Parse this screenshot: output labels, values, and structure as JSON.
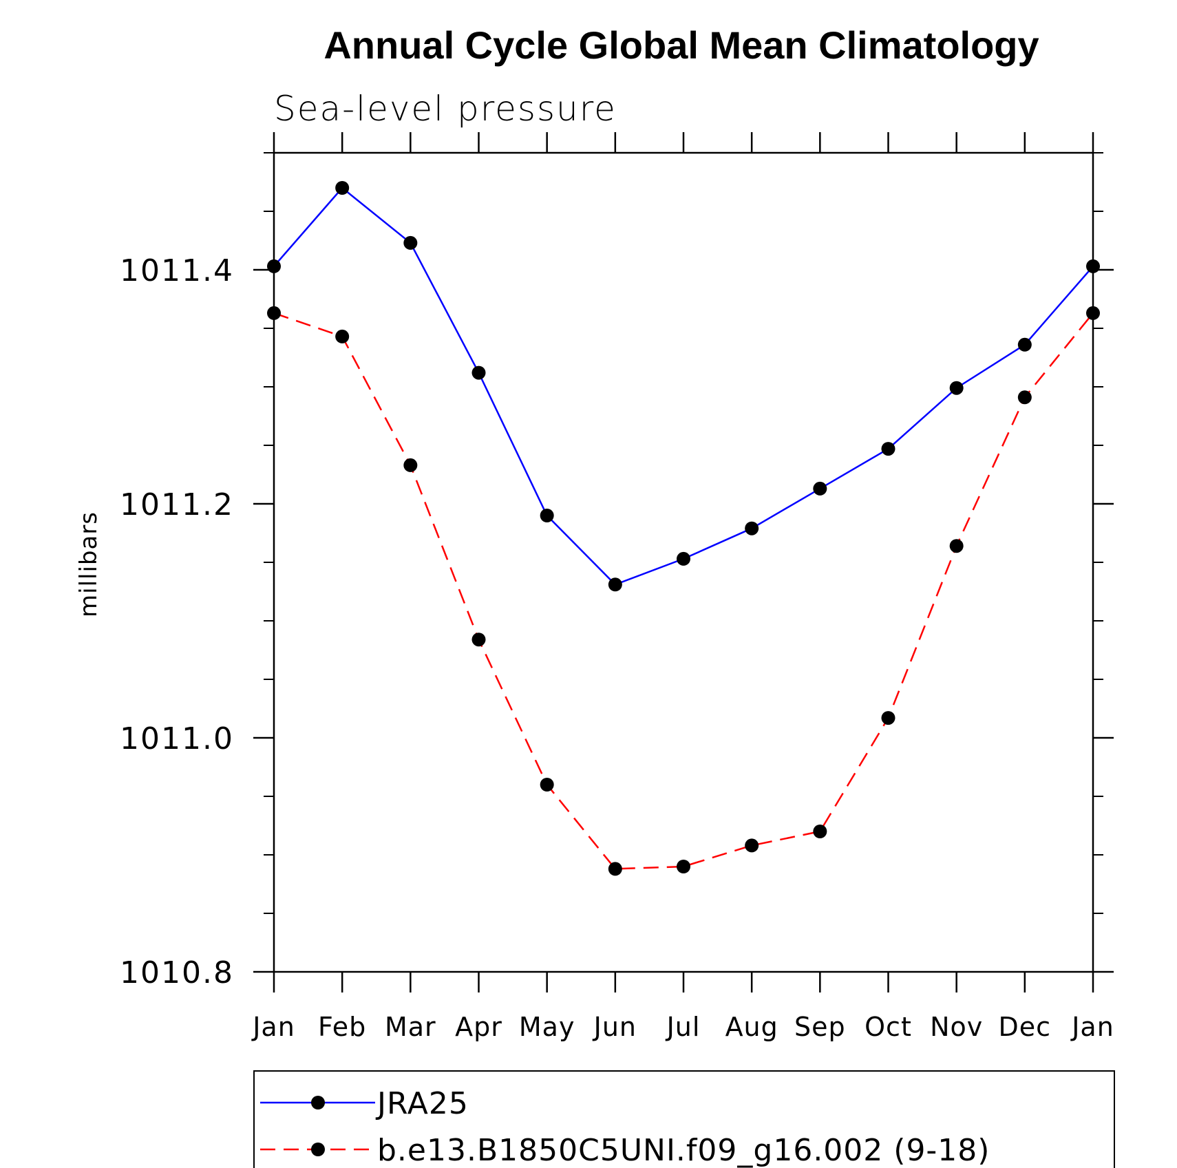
{
  "chart_data": {
    "type": "line",
    "title": "Annual Cycle Global Mean Climatology",
    "subtitle": "Sea-level pressure",
    "ylabel": "millibars",
    "xlabel": "",
    "categories": [
      "Jan",
      "Feb",
      "Mar",
      "Apr",
      "May",
      "Jun",
      "Jul",
      "Aug",
      "Sep",
      "Oct",
      "Nov",
      "Dec",
      "Jan"
    ],
    "ylim": [
      1010.8,
      1011.5
    ],
    "yticks": [
      "1010.8",
      "1011.0",
      "1011.2",
      "1011.4"
    ],
    "ytick_values": [
      1010.8,
      1011.0,
      1011.2,
      1011.4
    ],
    "legend_position": "bottom",
    "series": [
      {
        "name": "JRA25",
        "color": "#0000ff",
        "style": "solid",
        "values": [
          1011.403,
          1011.47,
          1011.423,
          1011.312,
          1011.19,
          1011.131,
          1011.153,
          1011.179,
          1011.213,
          1011.247,
          1011.299,
          1011.336,
          1011.403
        ]
      },
      {
        "name": "b.e13.B1850C5UNI.f09_g16.002 (9-18)",
        "color": "#ff0000",
        "style": "dashed",
        "values": [
          1011.363,
          1011.343,
          1011.233,
          1011.084,
          1010.96,
          1010.888,
          1010.89,
          1010.908,
          1010.92,
          1011.017,
          1011.164,
          1011.291,
          1011.363
        ]
      }
    ]
  }
}
